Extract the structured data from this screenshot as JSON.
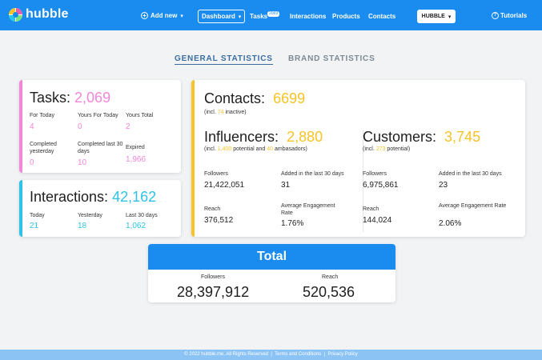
{
  "brand": {
    "logo_text": "hubble"
  },
  "nav": {
    "add_new": "Add new",
    "dashboard": "Dashboard",
    "tasks": "Tasks",
    "tasks_badge": "2069",
    "interactions": "Interactions",
    "products": "Products",
    "contacts": "Contacts",
    "brand_select": "HUBBLE",
    "tutorials": "Tutorials"
  },
  "stats_tabs": {
    "general": "GENERAL STATISTICS",
    "brand": "BRAND STATISTICS"
  },
  "tasks": {
    "title": "Tasks:",
    "total": "2,069",
    "for_today_label": "For Today",
    "for_today": "4",
    "yours_for_today_label": "Yours For Today",
    "yours_for_today": "0",
    "yours_total_label": "Yours Total",
    "yours_total": "2",
    "completed_yesterday_label": "Completed yesterday",
    "completed_yesterday": "0",
    "completed_30_label": "Completed last 30 days",
    "completed_30": "10",
    "expired_label": "Expired",
    "expired": "1,966"
  },
  "interactions": {
    "title": "Interactions:",
    "total": "42,162",
    "today_label": "Today",
    "today": "21",
    "yesterday_label": "Yesterday",
    "yesterday": "18",
    "last30_label": "Last 30 days",
    "last30": "1,062"
  },
  "contacts": {
    "title": "Contacts:",
    "total": "6699",
    "note_pre": "(incl. ",
    "note_inactive": "74",
    "note_post": " inactive)"
  },
  "influencers": {
    "title": "Influencers:",
    "total": "2,880",
    "note_pre": "(incl. ",
    "note_potential": "1,400",
    "note_mid": " potential and ",
    "note_ambassadors": "40",
    "note_post": " ambasadors)",
    "followers_label": "Followers",
    "followers": "21,422,051",
    "added_label": "Added in the last 30 days",
    "added": "31",
    "reach_label": "Reach",
    "reach": "376,512",
    "engagement_label": "Average Engagement Rate",
    "engagement": "1.76%"
  },
  "customers": {
    "title": "Customers:",
    "total": "3,745",
    "note_pre": "(incl. ",
    "note_potential": "273",
    "note_post": " potential)",
    "followers_label": "Followers",
    "followers": "6,975,861",
    "added_label": "Added in the last 30 days",
    "added": "23",
    "reach_label": "Reach",
    "reach": "144,024",
    "engagement_label": "Average Engagement Rate",
    "engagement": "2.06%"
  },
  "total": {
    "title": "Total",
    "followers_label": "Followers",
    "followers": "28,397,912",
    "reach_label": "Reach",
    "reach": "520,536"
  },
  "footer": {
    "copyright": "© 2022 hubble.me. All Rights Reserved",
    "sep": "|",
    "terms": "Terms and Conditions",
    "privacy": "Privacy Policy"
  },
  "colors": {
    "primary": "#1a8cf0",
    "tasks_accent": "#f287d9",
    "interactions_accent": "#2ec3e6",
    "contacts_accent": "#f7c325"
  }
}
